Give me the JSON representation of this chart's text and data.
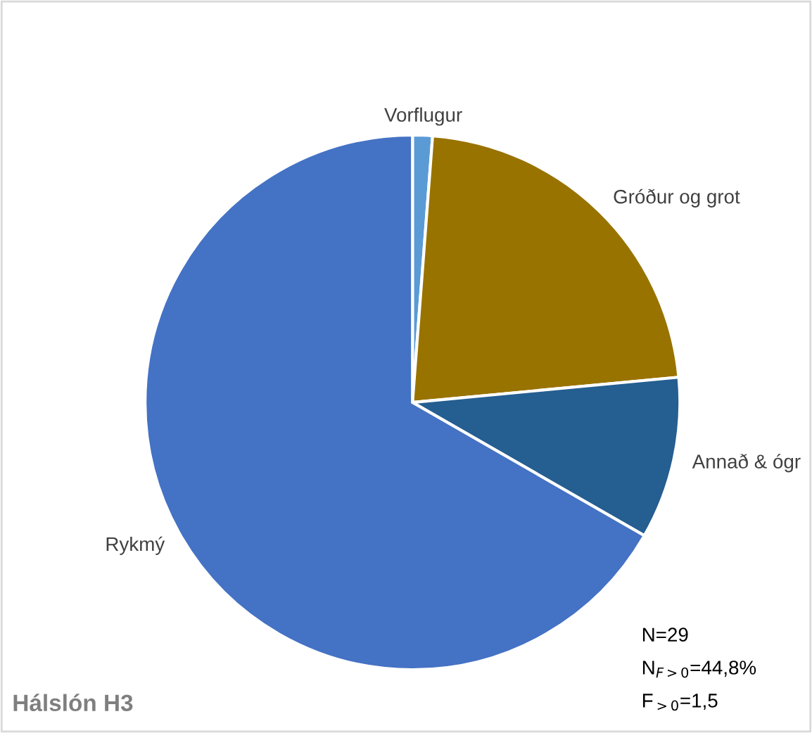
{
  "chart_data": {
    "type": "pie",
    "title": "Hálslón H3",
    "categories": [
      "Vorflugur",
      "Gróður og grot",
      "Annað & ógr",
      "Rykmý"
    ],
    "values": [
      1.2,
      22.3,
      9.8,
      66.7
    ],
    "colors": [
      "#5b9bd5",
      "#997300",
      "#255e91",
      "#4472c4"
    ],
    "annotations": [
      "N=29",
      "N$_{F>0}$=44,8%",
      "F$_{>0}$=1,5"
    ]
  }
}
